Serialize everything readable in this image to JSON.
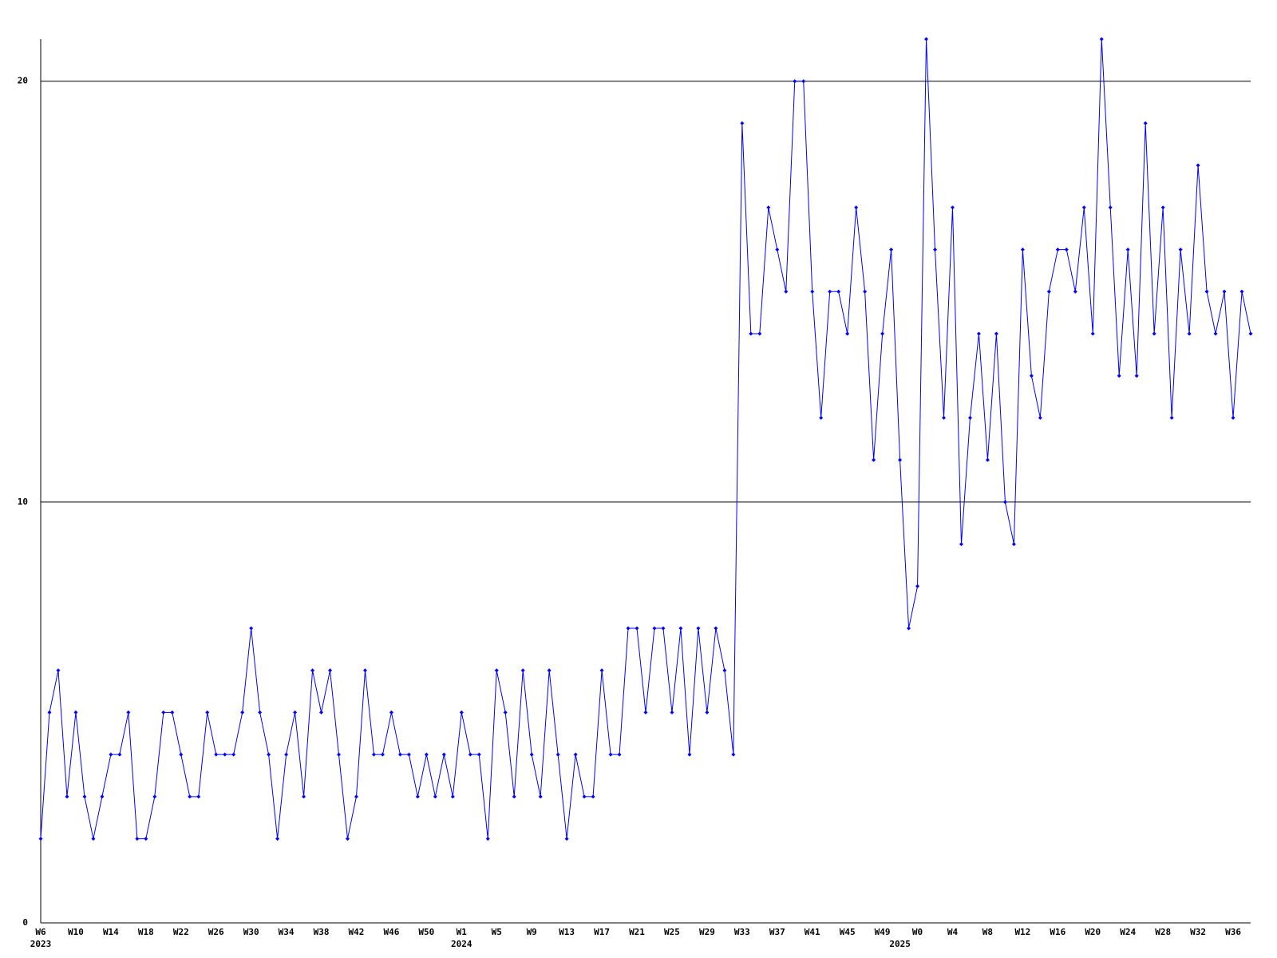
{
  "chart_data": {
    "type": "line",
    "color": "#0000ff",
    "grid": true,
    "marker": "diamond",
    "ylim": [
      0,
      21
    ],
    "yticks": [
      0,
      10,
      20
    ],
    "categories": [
      "W6",
      null,
      null,
      null,
      "W10",
      null,
      null,
      null,
      "W14",
      null,
      null,
      null,
      "W18",
      null,
      null,
      null,
      "W22",
      null,
      null,
      null,
      "W26",
      null,
      null,
      null,
      "W30",
      null,
      null,
      null,
      "W34",
      null,
      null,
      null,
      "W38",
      null,
      null,
      null,
      "W42",
      null,
      null,
      null,
      "W46",
      null,
      null,
      null,
      "W50",
      null,
      null,
      null,
      "W1",
      null,
      null,
      null,
      "W5",
      null,
      null,
      null,
      "W9",
      null,
      null,
      null,
      "W13",
      null,
      null,
      null,
      "W17",
      null,
      null,
      null,
      "W21",
      null,
      null,
      null,
      "W25",
      null,
      null,
      null,
      "W29",
      null,
      null,
      null,
      "W33",
      null,
      null,
      null,
      "W37",
      null,
      null,
      null,
      "W41",
      null,
      null,
      null,
      "W45",
      null,
      null,
      null,
      "W49",
      null,
      null,
      null,
      "W0",
      null,
      null,
      null,
      "W4",
      null,
      null,
      null,
      "W8",
      null,
      null,
      null,
      "W12",
      null,
      null,
      null,
      "W16",
      null,
      null,
      null,
      "W20",
      null,
      null,
      null,
      "W24",
      null,
      null,
      null,
      "W28",
      null,
      null,
      null,
      "W32",
      null,
      null,
      null,
      "W36",
      null,
      null
    ],
    "x_sublabels": [
      "2023",
      null,
      null,
      null,
      null,
      null,
      null,
      null,
      null,
      null,
      null,
      null,
      null,
      null,
      null,
      null,
      null,
      null,
      null,
      null,
      null,
      null,
      null,
      null,
      null,
      null,
      null,
      null,
      null,
      null,
      null,
      null,
      null,
      null,
      null,
      null,
      null,
      null,
      null,
      null,
      null,
      null,
      null,
      null,
      null,
      null,
      null,
      null,
      "2024",
      null,
      null,
      null,
      null,
      null,
      null,
      null,
      null,
      null,
      null,
      null,
      null,
      null,
      null,
      null,
      null,
      null,
      null,
      null,
      null,
      null,
      null,
      null,
      null,
      null,
      null,
      null,
      null,
      null,
      null,
      null,
      null,
      null,
      null,
      null,
      null,
      null,
      null,
      null,
      null,
      null,
      null,
      null,
      null,
      null,
      null,
      null,
      null,
      null,
      "2025",
      null,
      null,
      null,
      null,
      null,
      null,
      null,
      null,
      null,
      null,
      null,
      null,
      null,
      null,
      null,
      null,
      null,
      null,
      null,
      null,
      null,
      null,
      null,
      null,
      null,
      null,
      null,
      null,
      null,
      null,
      null,
      null,
      null,
      null,
      null,
      null,
      null
    ],
    "values": [
      2,
      5,
      6,
      3,
      5,
      3,
      2,
      3,
      4,
      4,
      5,
      2,
      2,
      3,
      5,
      5,
      4,
      3,
      3,
      5,
      4,
      4,
      4,
      5,
      7,
      5,
      4,
      2,
      4,
      5,
      3,
      6,
      5,
      6,
      4,
      2,
      3,
      6,
      4,
      4,
      5,
      4,
      4,
      3,
      4,
      3,
      4,
      3,
      5,
      4,
      4,
      2,
      6,
      5,
      3,
      6,
      4,
      3,
      6,
      4,
      2,
      4,
      3,
      3,
      6,
      4,
      4,
      7,
      7,
      5,
      7,
      7,
      5,
      7,
      4,
      7,
      5,
      7,
      6,
      4,
      19,
      14,
      14,
      17,
      16,
      15,
      20,
      20,
      15,
      12,
      15,
      15,
      14,
      17,
      15,
      11,
      14,
      16,
      11,
      7,
      8,
      21,
      16,
      12,
      17,
      9,
      12,
      14,
      11,
      14,
      10,
      9,
      16,
      13,
      12,
      15,
      16,
      16,
      15,
      17,
      14,
      21,
      17,
      13,
      16,
      13,
      19,
      14,
      17,
      12,
      16,
      14,
      18,
      15,
      14,
      15,
      12,
      15,
      14
    ]
  }
}
